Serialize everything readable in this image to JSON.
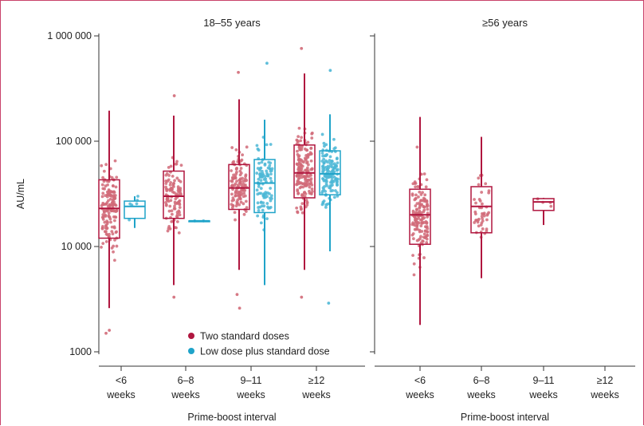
{
  "chart_data": {
    "type": "box",
    "ylabel": "AU/mL",
    "y_scale": "log",
    "ylim": [
      1000,
      1000000
    ],
    "y_ticks": [
      {
        "value": 1000,
        "label": "1000"
      },
      {
        "value": 10000,
        "label": "10 000"
      },
      {
        "value": 100000,
        "label": "100 000"
      },
      {
        "value": 1000000,
        "label": "1 000 000"
      }
    ],
    "legend": {
      "placement": "bottom-right of left panel",
      "entries": [
        {
          "name": "Two standard doses",
          "color": "#b0163f"
        },
        {
          "name": "Low dose plus standard dose",
          "color": "#1fa3c9"
        }
      ]
    },
    "colors": {
      "two_standard": "#b0163f",
      "low_plus_standard": "#1fa3c9",
      "frame": "#c8426a"
    },
    "panels": [
      {
        "title": "18–55 years",
        "xlabel": "Prime-boost interval",
        "categories": [
          {
            "line1": "<6",
            "line2": "weeks"
          },
          {
            "line1": "6–8",
            "line2": "weeks"
          },
          {
            "line1": "9–11",
            "line2": "weeks"
          },
          {
            "line1": "≥12",
            "line2": "weeks"
          }
        ],
        "series": [
          {
            "name": "Two standard doses",
            "boxes": [
              {
                "category": 0,
                "min": 2600,
                "q1": 12000,
                "median": 23000,
                "q3": 43000,
                "max": 195000,
                "n_points": 150,
                "outliers": [
                  1500,
                  1600
                ]
              },
              {
                "category": 1,
                "min": 4300,
                "q1": 18500,
                "median": 30000,
                "q3": 52000,
                "max": 175000,
                "n_points": 110,
                "outliers": [
                  3300,
                  270000
                ]
              },
              {
                "category": 2,
                "min": 6000,
                "q1": 22500,
                "median": 36000,
                "q3": 60000,
                "max": 250000,
                "n_points": 120,
                "outliers": [
                  2600,
                  3500,
                  450000
                ]
              },
              {
                "category": 3,
                "min": 6000,
                "q1": 29000,
                "median": 50000,
                "q3": 92000,
                "max": 440000,
                "n_points": 180,
                "outliers": [
                  3300,
                  760000
                ]
              }
            ]
          },
          {
            "name": "Low dose plus standard dose",
            "boxes": [
              {
                "category": 0,
                "min": 15000,
                "q1": 18500,
                "median": 24000,
                "q3": 27000,
                "max": 30000,
                "n_points": 6,
                "outliers": []
              },
              {
                "category": 1,
                "min": 17500,
                "q1": 17500,
                "median": 17500,
                "q3": 17500,
                "max": 17500,
                "n_points": 2,
                "outliers": []
              },
              {
                "category": 2,
                "min": 4300,
                "q1": 21000,
                "median": 40000,
                "q3": 67000,
                "max": 160000,
                "n_points": 100,
                "outliers": [
                  550000
                ]
              },
              {
                "category": 3,
                "min": 9000,
                "q1": 31000,
                "median": 49000,
                "q3": 81000,
                "max": 180000,
                "n_points": 140,
                "outliers": [
                  2900,
                  470000
                ]
              }
            ]
          }
        ]
      },
      {
        "title": "≥56 years",
        "xlabel": "Prime-boost interval",
        "categories": [
          {
            "line1": "<6",
            "line2": "weeks"
          },
          {
            "line1": "6–8",
            "line2": "weeks"
          },
          {
            "line1": "9–11",
            "line2": "weeks"
          },
          {
            "line1": "≥12",
            "line2": "weeks"
          }
        ],
        "series": [
          {
            "name": "Two standard doses",
            "boxes": [
              {
                "category": 0,
                "min": 1800,
                "q1": 10500,
                "median": 20000,
                "q3": 35000,
                "max": 170000,
                "n_points": 150,
                "outliers": []
              },
              {
                "category": 1,
                "min": 5000,
                "q1": 13500,
                "median": 24000,
                "q3": 37000,
                "max": 110000,
                "n_points": 45,
                "outliers": []
              },
              {
                "category": 2,
                "min": 16000,
                "q1": 22000,
                "median": 26500,
                "q3": 28500,
                "max": 29000,
                "n_points": 4,
                "outliers": []
              }
            ]
          }
        ]
      }
    ]
  }
}
